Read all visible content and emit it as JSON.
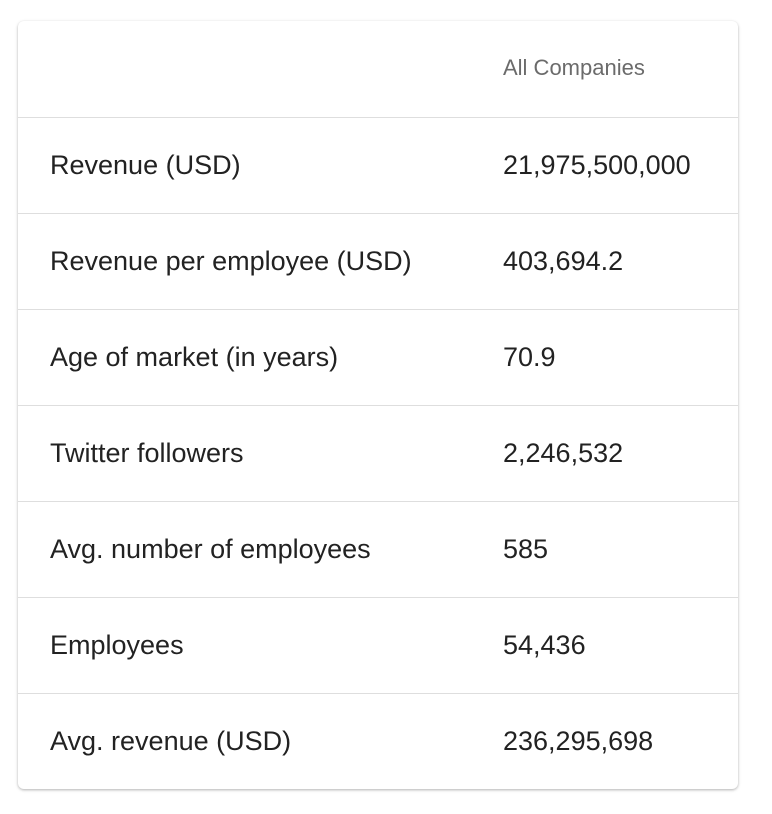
{
  "table": {
    "column_header": "All Companies",
    "rows": [
      {
        "label": "Revenue (USD)",
        "value": "21,975,500,000"
      },
      {
        "label": "Revenue per employee (USD)",
        "value": "403,694.2"
      },
      {
        "label": "Age of market (in years)",
        "value": "70.9"
      },
      {
        "label": "Twitter followers",
        "value": "2,246,532"
      },
      {
        "label": "Avg. number of employees",
        "value": "585"
      },
      {
        "label": "Employees",
        "value": "54,436"
      },
      {
        "label": "Avg. revenue (USD)",
        "value": "236,295,698"
      }
    ]
  }
}
